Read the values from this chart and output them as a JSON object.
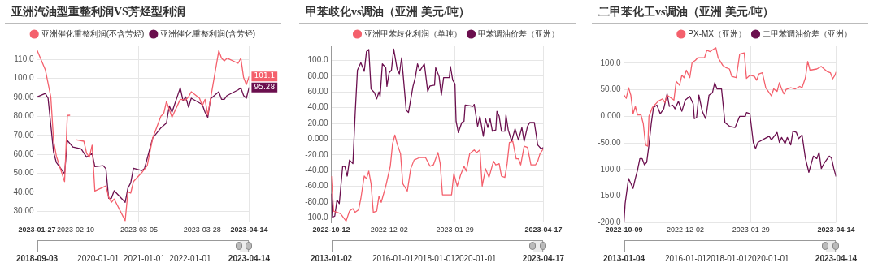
{
  "chart_data": [
    {
      "type": "line",
      "title": "亚洲汽油型重整利润VS芳烃型利润",
      "legend": "top right",
      "grid": true,
      "marker": "none",
      "xlim": [
        "2023-01-27",
        "2023-04-14"
      ],
      "xticks": [
        "2023-01-27",
        "2023-02-10",
        "2023-03-05",
        "2023-03-28",
        "2023-04-14"
      ],
      "ylim": [
        24,
        117
      ],
      "yticks": [
        {
          "value": 30,
          "label": "30.00"
        },
        {
          "value": 40,
          "label": "40.00"
        },
        {
          "value": 50,
          "label": "50.00"
        },
        {
          "value": 60,
          "label": "60.00"
        },
        {
          "value": 70,
          "label": "70.00"
        },
        {
          "value": 80,
          "label": "80.00"
        },
        {
          "value": 90,
          "label": "90.00"
        },
        {
          "value": 100,
          "label": "100.0"
        },
        {
          "value": 110,
          "label": "110.0"
        }
      ],
      "x2lim": [
        "2018-09-03",
        "2023-04-14"
      ],
      "x2ticks": [
        "2018-09-03",
        "2020-01-01",
        "2021-01-01",
        "2022-01-01",
        "2023-04-14"
      ],
      "annotations": [
        {
          "text": "101.1",
          "x": "2023-04-14",
          "y": 101.1
        },
        {
          "text": "95.28",
          "x": "2023-04-14",
          "y": 95.28
        }
      ],
      "series": [
        {
          "name": "亚洲催化重整利润(不含芳烃)",
          "color": "#f4606c",
          "x": [
            "2023-01-27",
            "2023-01-30",
            "2023-02-01",
            "2023-02-02",
            "2023-02-03",
            "2023-02-06",
            "2023-02-07",
            "2023-02-08",
            "2023-02-09",
            "2023-02-10",
            "2023-02-13",
            "2023-02-14",
            "2023-02-15",
            "2023-02-16",
            "2023-02-17",
            "2023-02-21",
            "2023-02-22",
            "2023-02-23",
            "2023-02-24",
            "2023-02-28",
            "2023-03-01",
            "2023-03-02",
            "2023-03-03",
            "2023-03-06",
            "2023-03-08",
            "2023-03-10",
            "2023-03-13",
            "2023-03-14",
            "2023-03-15",
            "2023-03-17",
            "2023-03-20",
            "2023-03-22",
            "2023-03-23",
            "2023-03-24",
            "2023-03-27",
            "2023-03-28",
            "2023-03-29",
            "2023-03-30",
            "2023-04-03",
            "2023-04-04",
            "2023-04-05",
            "2023-04-06",
            "2023-04-10",
            "2023-04-11",
            "2023-04-12",
            "2023-04-13",
            "2023-04-14"
          ],
          "values": [
            115,
            104.6,
            90.3,
            67.3,
            59.1,
            45.6,
            80.5,
            80.6,
            null,
            67.7,
            66.9,
            60.5,
            58.5,
            64.8,
            40.6,
            43.3,
            37.4,
            34.7,
            36.4,
            25,
            40.2,
            39.5,
            45.6,
            50.3,
            54,
            68.6,
            80.2,
            81.5,
            87.9,
            79.5,
            89,
            88.7,
            90.3,
            93,
            89.6,
            85.6,
            89,
            80.8,
            114.7,
            110.7,
            109.3,
            110.7,
            108,
            110.7,
            100.5,
            96.8,
            101.1
          ]
        },
        {
          "name": "亚洲催化重整利润(含芳烃)",
          "color": "#6b0f4e",
          "x": [
            "2023-01-27",
            "2023-01-30",
            "2023-01-31",
            "2023-02-02",
            "2023-02-03",
            "2023-02-06",
            "2023-02-07",
            "2023-02-09",
            "2023-02-12",
            "2023-02-14",
            "2023-02-16",
            "2023-02-17",
            "2023-02-20",
            "2023-02-21",
            "2023-02-22",
            "2023-02-23",
            "2023-02-24",
            "2023-02-28",
            "2023-03-01",
            "2023-03-02",
            "2023-03-03",
            "2023-03-06",
            "2023-03-07",
            "2023-03-10",
            "2023-03-13",
            "2023-03-15",
            "2023-03-16",
            "2023-03-17",
            "2023-03-20",
            "2023-03-21",
            "2023-03-22",
            "2023-03-23",
            "2023-03-24",
            "2023-03-28",
            "2023-03-29",
            "2023-03-30",
            "2023-03-31",
            "2023-04-03",
            "2023-04-04",
            "2023-04-05",
            "2023-04-06",
            "2023-04-10",
            "2023-04-11",
            "2023-04-12",
            "2023-04-13",
            "2023-04-14"
          ],
          "values": [
            90.3,
            92.1,
            89.6,
            61.2,
            55.7,
            49.7,
            67.3,
            63.9,
            62.9,
            58.5,
            60.5,
            53.5,
            54,
            52.4,
            36.8,
            36.8,
            40.8,
            34.7,
            42.2,
            44.9,
            52.6,
            51.4,
            52.4,
            68.6,
            74,
            76.5,
            85.6,
            82.2,
            95.1,
            88.3,
            90.3,
            84.9,
            89.6,
            86.3,
            82.2,
            79.5,
            89.3,
            93,
            89,
            89,
            91,
            94,
            95.1,
            91,
            89.6,
            95.28
          ]
        }
      ]
    },
    {
      "type": "line",
      "title": "甲苯歧化vs调油（亚洲 美元/吨）",
      "legend": "top right",
      "grid": true,
      "marker": "none",
      "xlim": [
        "2022-10-12",
        "2023-04-17"
      ],
      "xticks": [
        "2022-10-12",
        "2022-12-02",
        "2023-01-29",
        "2023-04-17"
      ],
      "ylim": [
        -106,
        118
      ],
      "yticks": [
        {
          "value": -100,
          "label": "-100.0"
        },
        {
          "value": -80,
          "label": "-80.00"
        },
        {
          "value": -60,
          "label": "-60.00"
        },
        {
          "value": -40,
          "label": "-40.00"
        },
        {
          "value": -20,
          "label": "-20.00"
        },
        {
          "value": 0,
          "label": "0.000"
        },
        {
          "value": 20,
          "label": "20.00"
        },
        {
          "value": 40,
          "label": "40.00"
        },
        {
          "value": 60,
          "label": "60.00"
        },
        {
          "value": 80,
          "label": "80.00"
        },
        {
          "value": 100,
          "label": "100.0"
        }
      ],
      "x2lim": [
        "2013-01-02",
        "2023-04-17"
      ],
      "x2ticks": [
        "2013-01-02",
        "2016-01-01",
        "2018-01-01",
        "2020-01-01",
        "2023-04-17"
      ],
      "series": [
        {
          "name": "亚洲甲苯歧化利润（单吨）",
          "color": "#f4606c",
          "x": [
            "2022-10-12",
            "2022-10-14",
            "2022-10-20",
            "2022-10-25",
            "2022-10-28",
            "2022-10-31",
            "2022-11-02",
            "2022-11-05",
            "2022-11-07",
            "2022-11-10",
            "2022-11-12",
            "2022-11-14",
            "2022-11-16",
            "2022-11-18",
            "2022-11-21",
            "2022-11-23",
            "2022-11-25",
            "2022-11-29",
            "2022-12-01",
            "2022-12-03",
            "2022-12-05",
            "2022-12-07",
            "2022-12-09",
            "2022-12-12",
            "2022-12-14",
            "2022-12-18",
            "2022-12-21",
            "2022-12-24",
            "2022-12-29",
            "2023-01-03",
            "2023-01-07",
            "2023-01-10",
            "2023-01-14",
            "2023-01-16",
            "2023-01-18",
            "2023-01-26",
            "2023-01-28",
            "2023-01-31",
            "2023-02-03",
            "2023-02-06",
            "2023-02-08",
            "2023-02-11",
            "2023-02-15",
            "2023-02-17",
            "2023-02-20",
            "2023-02-22",
            "2023-02-25",
            "2023-02-28",
            "2023-03-04",
            "2023-03-06",
            "2023-03-09",
            "2023-03-11",
            "2023-03-14",
            "2023-03-16",
            "2023-03-18",
            "2023-03-21",
            "2023-03-24",
            "2023-03-26",
            "2023-03-28",
            "2023-03-31",
            "2023-04-03",
            "2023-04-06",
            "2023-04-10",
            "2023-04-12",
            "2023-04-14",
            "2023-04-17"
          ],
          "values": [
            -47,
            -91.4,
            -94.6,
            -104.1,
            -91.4,
            -88.3,
            -93,
            -89.9,
            -75.6,
            -47,
            -50.2,
            -40.7,
            -56.6,
            -93,
            -91.4,
            -72.4,
            -80.3,
            -59.7,
            -47,
            -34.4,
            -5.9,
            5.2,
            -5.9,
            -18.5,
            -56.6,
            -66.1,
            -37.6,
            -26.5,
            -23.3,
            -23.3,
            -34.4,
            -32.8,
            -17,
            -31.2,
            -70.8,
            -70.8,
            -43.9,
            -59.7,
            -45.5,
            -34.4,
            -40.7,
            -18.5,
            -13.8,
            -17,
            -13.8,
            -59.7,
            -37.6,
            -48.7,
            -28,
            -32.8,
            -31.2,
            -47,
            -48.7,
            -31.2,
            -4.3,
            -2.7,
            -24.9,
            -24.9,
            -32.8,
            -9,
            -10.6,
            -32.8,
            -32.8,
            -28,
            -18.5,
            -12.2
          ]
        },
        {
          "name": "甲苯调油价差（亚洲）",
          "color": "#6b0f4e",
          "x": [
            "2022-10-12",
            "2022-10-13",
            "2022-10-15",
            "2022-10-17",
            "2022-10-19",
            "2022-10-22",
            "2022-10-24",
            "2022-10-26",
            "2022-10-28",
            "2022-10-31",
            "2022-11-02",
            "2022-11-04",
            "2022-11-07",
            "2022-11-10",
            "2022-11-12",
            "2022-11-14",
            "2022-11-16",
            "2022-11-19",
            "2022-11-21",
            "2022-11-23",
            "2022-11-24",
            "2022-11-26",
            "2022-11-29",
            "2022-11-30",
            "2022-12-02",
            "2022-12-04",
            "2022-12-06",
            "2022-12-09",
            "2022-12-11",
            "2022-12-13",
            "2022-12-17",
            "2022-12-19",
            "2022-12-23",
            "2022-12-25",
            "2022-12-27",
            "2022-12-29",
            "2023-01-02",
            "2023-01-05",
            "2023-01-07",
            "2023-01-11",
            "2023-01-12",
            "2023-01-15",
            "2023-01-17",
            "2023-01-19",
            "2023-01-24",
            "2023-01-25",
            "2023-01-27",
            "2023-01-29",
            "2023-01-30",
            "2023-02-01",
            "2023-02-04",
            "2023-02-06",
            "2023-02-07",
            "2023-02-14",
            "2023-02-15",
            "2023-02-18",
            "2023-02-20",
            "2023-02-23",
            "2023-02-25",
            "2023-02-27",
            "2023-03-01",
            "2023-03-03",
            "2023-03-06",
            "2023-03-07",
            "2023-03-09",
            "2023-03-11",
            "2023-03-14",
            "2023-03-15",
            "2023-03-17",
            "2023-03-20",
            "2023-03-23",
            "2023-03-26",
            "2023-03-29",
            "2023-03-31",
            "2023-04-03",
            "2023-04-05",
            "2023-04-09",
            "2023-04-12",
            "2023-04-15",
            "2023-04-17"
          ],
          "values": [
            -69.3,
            -99.4,
            -97.8,
            -77.2,
            -82,
            -34.4,
            -35,
            -47,
            -26.5,
            -31.2,
            32.2,
            87.6,
            97.1,
            86.1,
            111.4,
            113.9,
            63.9,
            59.1,
            51.2,
            60,
            54.4,
            95.6,
            90.8,
            67,
            84.5,
            87.6,
            114.6,
            89.2,
            82.9,
            103.5,
            36.9,
            33.8,
            67,
            78.1,
            95.6,
            86.7,
            95.6,
            60.7,
            67.7,
            68.6,
            90.8,
            79.7,
            55.9,
            78.1,
            78.1,
            92.4,
            75,
            70.2,
            22.7,
            8.4,
            21.1,
            22.7,
            43.3,
            41.7,
            44.2,
            16.3,
            29,
            3.6,
            25.8,
            14.7,
            25.8,
            10,
            11.6,
            35.3,
            29,
            10,
            10,
            30.6,
            11.6,
            -2.7,
            13.2,
            -1.1,
            14.7,
            -2.7,
            16.3,
            21.1,
            21.1,
            -7.4,
            -12.2,
            -10.6
          ]
        }
      ]
    },
    {
      "type": "line",
      "title": "二甲苯化工vs调油（亚洲 美元/吨）",
      "legend": "top right",
      "grid": true,
      "marker": "none",
      "xlim": [
        "2022-10-09",
        "2023-04-14"
      ],
      "xticks": [
        "2022-10-09",
        "2022-12-02",
        "2023-01-29",
        "2023-04-14"
      ],
      "ylim": [
        -200,
        132
      ],
      "yticks": [
        {
          "value": -200,
          "label": "-200.0"
        },
        {
          "value": -150,
          "label": "-150.0"
        },
        {
          "value": -100,
          "label": "-100.0"
        },
        {
          "value": -50,
          "label": "-50.00"
        },
        {
          "value": 0,
          "label": "0.000"
        },
        {
          "value": 50,
          "label": "50.00"
        },
        {
          "value": 100,
          "label": "100.0"
        }
      ],
      "x2lim": [
        "2013-01-04",
        "2023-04-14"
      ],
      "x2ticks": [
        "2013-01-04",
        "2016-01-01",
        "2018-01-01",
        "2020-01-01",
        "2023-04-14"
      ],
      "series": [
        {
          "name": "PX-MX（亚洲）",
          "color": "#f4606c",
          "x": [
            "2022-10-09",
            "2022-10-11",
            "2022-10-13",
            "2022-10-15",
            "2022-10-17",
            "2022-10-19",
            "2022-10-21",
            "2022-10-24",
            "2022-10-26",
            "2022-10-28",
            "2022-10-30",
            "2022-10-31",
            "2022-11-03",
            "2022-11-08",
            "2022-11-12",
            "2022-11-14",
            "2022-11-16",
            "2022-11-19",
            "2022-11-22",
            "2022-11-24",
            "2022-11-27",
            "2022-11-29",
            "2022-12-01",
            "2022-12-03",
            "2022-12-06",
            "2022-12-08",
            "2022-12-11",
            "2022-12-13",
            "2022-12-19",
            "2022-12-21",
            "2022-12-24",
            "2022-12-27",
            "2022-12-29",
            "2022-12-31",
            "2023-01-04",
            "2023-01-07",
            "2023-01-10",
            "2023-01-12",
            "2023-01-16",
            "2023-01-19",
            "2023-01-23",
            "2023-01-25",
            "2023-01-28",
            "2023-02-01",
            "2023-02-03",
            "2023-02-05",
            "2023-02-08",
            "2023-02-11",
            "2023-02-14",
            "2023-02-16",
            "2023-02-18",
            "2023-02-21",
            "2023-02-23",
            "2023-02-25",
            "2023-02-27",
            "2023-03-01",
            "2023-03-05",
            "2023-03-09",
            "2023-03-13",
            "2023-03-15",
            "2023-03-18",
            "2023-03-20",
            "2023-03-22",
            "2023-03-28",
            "2023-04-01",
            "2023-04-06",
            "2023-04-09",
            "2023-04-11",
            "2023-04-13",
            "2023-04-14"
          ],
          "values": [
            40,
            33.9,
            54,
            40,
            4.8,
            18.9,
            2.5,
            2.5,
            -13.9,
            -53.8,
            -56.1,
            0.1,
            16.6,
            28.3,
            33,
            25.9,
            40,
            35.3,
            30.6,
            65.8,
            58.7,
            77.5,
            72.8,
            86.9,
            72.8,
            100.9,
            105.6,
            110.3,
            110.3,
            124.4,
            122,
            126.7,
            129.1,
            110.3,
            96.2,
            91.6,
            89.2,
            75.2,
            72.8,
            117.3,
            119.7,
            71.4,
            77.5,
            75.2,
            68.1,
            79.8,
            82.2,
            54,
            44.7,
            38.6,
            51.7,
            47,
            63.4,
            51.7,
            42.3,
            50.8,
            54,
            51.7,
            56.4,
            54,
            72.8,
            103.3,
            86.9,
            89.2,
            93.9,
            84.5,
            82.2,
            70.5,
            77.5,
            83.6
          ]
        },
        {
          "name": "二甲苯调油价差（亚洲）",
          "color": "#6b0f4e",
          "x": [
            "2022-10-09",
            "2022-10-10",
            "2022-10-13",
            "2022-10-15",
            "2022-10-17",
            "2022-10-19",
            "2022-10-21",
            "2022-10-23",
            "2022-10-25",
            "2022-10-27",
            "2022-10-29",
            "2022-10-31",
            "2022-11-02",
            "2022-11-04",
            "2022-11-07",
            "2022-11-10",
            "2022-11-13",
            "2022-11-16",
            "2022-11-18",
            "2022-11-21",
            "2022-11-23",
            "2022-11-26",
            "2022-11-29",
            "2022-12-02",
            "2022-12-06",
            "2022-12-09",
            "2022-12-10",
            "2022-12-12",
            "2022-12-14",
            "2022-12-17",
            "2022-12-20",
            "2022-12-23",
            "2022-12-26",
            "2022-12-28",
            "2022-12-30",
            "2023-01-03",
            "2023-01-06",
            "2023-01-10",
            "2023-01-15",
            "2023-01-19",
            "2023-01-24",
            "2023-01-25",
            "2023-01-28",
            "2023-01-31",
            "2023-02-02",
            "2023-02-04",
            "2023-02-10",
            "2023-02-14",
            "2023-02-16",
            "2023-02-21",
            "2023-02-23",
            "2023-02-25",
            "2023-02-28",
            "2023-03-02",
            "2023-03-05",
            "2023-03-07",
            "2023-03-10",
            "2023-03-12",
            "2023-03-15",
            "2023-03-18",
            "2023-03-21",
            "2023-03-25",
            "2023-03-28",
            "2023-03-30",
            "2023-04-01",
            "2023-04-04",
            "2023-04-08",
            "2023-04-10",
            "2023-04-12",
            "2023-04-14"
          ],
          "values": [
            -199,
            -163.9,
            -117,
            -126.4,
            -135.8,
            -117,
            -100.7,
            -79.6,
            -79.6,
            -91.3,
            -86.6,
            -53.8,
            -13.9,
            16.6,
            21.2,
            4.8,
            14.2,
            42.3,
            18.9,
            21.2,
            14.2,
            28.3,
            9.5,
            30.6,
            37.6,
            23.6,
            -4.5,
            -2.2,
            40,
            9.5,
            -4.5,
            40,
            44.7,
            63.4,
            51.7,
            51.7,
            -11.6,
            -18.6,
            -21,
            0.1,
            0.1,
            7.2,
            4.8,
            -49.1,
            -60.8,
            -49.1,
            -42.1,
            -37.4,
            -44.4,
            -30.3,
            -49.1,
            -39.7,
            -51.4,
            -39.7,
            -53.8,
            -28,
            -30.3,
            -42.1,
            -35,
            -79.6,
            -105.3,
            -74.9,
            -79.6,
            -67.8,
            -98.3,
            -86.6,
            -74.9,
            -78.6,
            -98.3,
            -113.3
          ]
        }
      ]
    }
  ]
}
